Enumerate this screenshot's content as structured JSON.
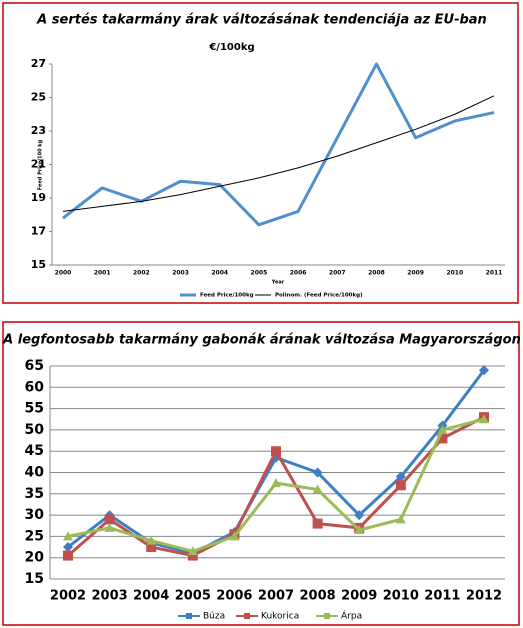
{
  "chart_data": [
    {
      "type": "line",
      "title": "A sertés takarmány árak változásának tendenciája az EU-ban",
      "subtitle": "€/100kg",
      "y_label": "Feed Price/100 kg",
      "x_label": "Year",
      "categories": [
        "2000",
        "2001",
        "2002",
        "2003",
        "2004",
        "2005",
        "2006",
        "2007",
        "2008",
        "2009",
        "2010",
        "2011"
      ],
      "series": [
        {
          "name": "Feed Price/100kg",
          "color": "#4f8fcc",
          "values": [
            17.8,
            19.6,
            18.8,
            20.0,
            19.8,
            17.4,
            18.2,
            22.6,
            27.0,
            22.6,
            23.6,
            24.1
          ]
        },
        {
          "name": "Polinom. (Feed Price/100kg)",
          "color": "#000000",
          "values": [
            18.2,
            18.5,
            18.8,
            19.2,
            19.7,
            20.2,
            20.8,
            21.5,
            22.3,
            23.1,
            24.0,
            25.1
          ]
        }
      ],
      "ylim": [
        15,
        27
      ],
      "yticks": [
        15,
        17,
        19,
        21,
        23,
        25,
        27
      ],
      "grid": false,
      "legend": "bottom"
    },
    {
      "type": "line",
      "title": "A legfontosabb takarmány gabonák árának változása Magyarországon",
      "categories": [
        "2002",
        "2003",
        "2004",
        "2005",
        "2006",
        "2007",
        "2008",
        "2009",
        "2010",
        "2011",
        "2012"
      ],
      "series": [
        {
          "name": "Búza",
          "color": "#3c7fc4",
          "marker": "diamond",
          "values": [
            22.5,
            30,
            23.5,
            21,
            26,
            43.5,
            40,
            30,
            39,
            51,
            64
          ]
        },
        {
          "name": "Kukorica",
          "color": "#c0504d",
          "marker": "square",
          "values": [
            20.5,
            29,
            22.5,
            20.5,
            25.5,
            45,
            28,
            27,
            37,
            48,
            53
          ]
        },
        {
          "name": "Árpa",
          "color": "#9bbb59",
          "marker": "triangle",
          "values": [
            25,
            27,
            24,
            21.5,
            25,
            37.5,
            36,
            26.5,
            29,
            50,
            52.5
          ]
        }
      ],
      "ylim": [
        15,
        65
      ],
      "yticks": [
        15,
        20,
        25,
        30,
        35,
        40,
        45,
        50,
        55,
        60,
        65
      ],
      "grid": true,
      "legend": "bottom"
    }
  ]
}
